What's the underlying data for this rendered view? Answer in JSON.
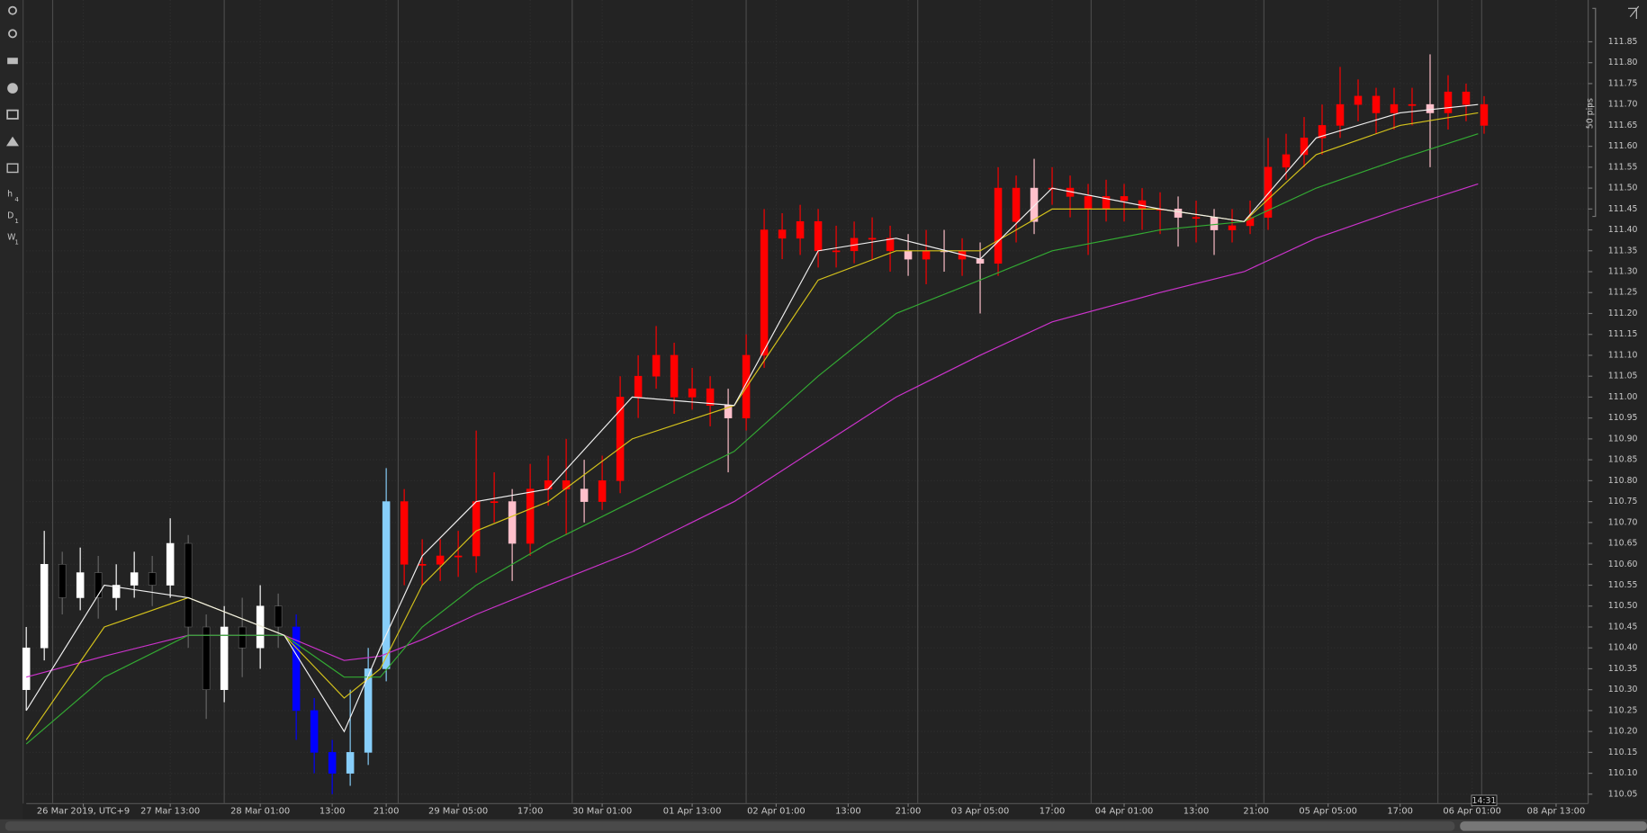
{
  "chart_data": {
    "type": "candlestick",
    "x": [
      0,
      3,
      6,
      9,
      12,
      15,
      18,
      21,
      24,
      27,
      30,
      33,
      36,
      39,
      42,
      45,
      48,
      51,
      54,
      57,
      60,
      63,
      66,
      69,
      72,
      75,
      78,
      81,
      84,
      87,
      90,
      93,
      96,
      99,
      102,
      105,
      108,
      111,
      114,
      117,
      120,
      123,
      126,
      129,
      132,
      135,
      138,
      141,
      144,
      147,
      150,
      153,
      156,
      159,
      162,
      165,
      168,
      171,
      174,
      177,
      180,
      183,
      186,
      189,
      192,
      195,
      198,
      201,
      204,
      207,
      210,
      213,
      216,
      219,
      222,
      225,
      228,
      231,
      234,
      237,
      240,
      243
    ],
    "open": [
      110.3,
      110.4,
      110.6,
      110.52,
      110.58,
      110.52,
      110.55,
      110.58,
      110.55,
      110.65,
      110.45,
      110.3,
      110.45,
      110.4,
      110.5,
      110.45,
      110.25,
      110.15,
      110.1,
      110.15,
      110.35,
      110.75,
      110.6,
      110.6,
      110.62,
      110.62,
      110.75,
      110.75,
      110.65,
      110.78,
      110.8,
      110.78,
      110.75,
      110.8,
      111.0,
      111.05,
      111.1,
      111.0,
      111.02,
      110.98,
      110.95,
      111.1,
      111.4,
      111.38,
      111.42,
      111.35,
      111.35,
      111.38,
      111.38,
      111.35,
      111.33,
      111.35,
      111.35,
      111.33,
      111.32,
      111.5,
      111.42,
      111.5,
      111.5,
      111.48,
      111.45,
      111.48,
      111.47,
      111.45,
      111.45,
      111.43,
      111.43,
      111.4,
      111.41,
      111.43,
      111.55,
      111.58,
      111.62,
      111.65,
      111.7,
      111.72,
      111.68,
      111.7,
      111.7,
      111.68,
      111.73,
      111.7
    ],
    "high": [
      110.45,
      110.68,
      110.63,
      110.64,
      110.62,
      110.6,
      110.63,
      110.62,
      110.71,
      110.67,
      110.48,
      110.5,
      110.52,
      110.55,
      110.53,
      110.48,
      110.28,
      110.18,
      110.3,
      110.4,
      110.83,
      110.78,
      110.66,
      110.66,
      110.68,
      110.92,
      110.82,
      110.78,
      110.84,
      110.86,
      110.9,
      110.85,
      110.86,
      111.05,
      111.1,
      111.17,
      111.13,
      111.07,
      111.05,
      111.02,
      111.15,
      111.45,
      111.44,
      111.46,
      111.45,
      111.41,
      111.42,
      111.43,
      111.41,
      111.39,
      111.4,
      111.4,
      111.38,
      111.37,
      111.55,
      111.53,
      111.57,
      111.55,
      111.53,
      111.51,
      111.52,
      111.51,
      111.5,
      111.49,
      111.48,
      111.47,
      111.45,
      111.45,
      111.47,
      111.62,
      111.63,
      111.67,
      111.7,
      111.79,
      111.76,
      111.74,
      111.74,
      111.74,
      111.82,
      111.77,
      111.75,
      111.72
    ],
    "low": [
      110.25,
      110.37,
      110.48,
      110.49,
      110.47,
      110.49,
      110.52,
      110.5,
      110.52,
      110.4,
      110.23,
      110.27,
      110.33,
      110.35,
      110.4,
      110.18,
      110.1,
      110.05,
      110.07,
      110.12,
      110.32,
      110.55,
      110.55,
      110.56,
      110.57,
      110.58,
      110.7,
      110.56,
      110.62,
      110.74,
      110.67,
      110.7,
      110.73,
      110.77,
      110.95,
      111.02,
      110.96,
      110.97,
      110.93,
      110.82,
      110.92,
      111.07,
      111.33,
      111.34,
      111.31,
      111.31,
      111.32,
      111.33,
      111.3,
      111.29,
      111.27,
      111.3,
      111.29,
      111.2,
      111.29,
      111.37,
      111.39,
      111.46,
      111.43,
      111.34,
      111.42,
      111.42,
      111.4,
      111.39,
      111.36,
      111.37,
      111.34,
      111.37,
      111.39,
      111.4,
      111.52,
      111.55,
      111.58,
      111.62,
      111.66,
      111.63,
      111.64,
      111.65,
      111.55,
      111.64,
      111.66,
      111.63
    ],
    "close": [
      110.4,
      110.6,
      110.52,
      110.58,
      110.52,
      110.55,
      110.58,
      110.55,
      110.65,
      110.45,
      110.3,
      110.45,
      110.4,
      110.5,
      110.45,
      110.25,
      110.15,
      110.1,
      110.15,
      110.35,
      110.75,
      110.6,
      110.6,
      110.62,
      110.62,
      110.75,
      110.75,
      110.65,
      110.78,
      110.8,
      110.78,
      110.75,
      110.8,
      111.0,
      111.05,
      111.1,
      111.0,
      111.02,
      110.98,
      110.95,
      111.1,
      111.4,
      111.38,
      111.42,
      111.35,
      111.35,
      111.38,
      111.38,
      111.35,
      111.33,
      111.35,
      111.35,
      111.33,
      111.32,
      111.5,
      111.42,
      111.5,
      111.5,
      111.48,
      111.45,
      111.48,
      111.47,
      111.45,
      111.45,
      111.43,
      111.43,
      111.4,
      111.41,
      111.43,
      111.55,
      111.58,
      111.62,
      111.65,
      111.7,
      111.72,
      111.68,
      111.7,
      111.7,
      111.68,
      111.73,
      111.7,
      111.65
    ],
    "colors": [
      "#ffffff",
      "#ffffff",
      "#000000",
      "#ffffff",
      "#000000",
      "#ffffff",
      "#ffffff",
      "#000000",
      "#ffffff",
      "#000000",
      "#000000",
      "#ffffff",
      "#000000",
      "#ffffff",
      "#000000",
      "#0000ff",
      "#0000ff",
      "#0000ff",
      "#87cefa",
      "#87cefa",
      "#87cefa",
      "#ff0000",
      "#ff0000",
      "#ff0000",
      "#ff0000",
      "#ff0000",
      "#ff0000",
      "#ffc0cb",
      "#ff0000",
      "#ff0000",
      "#ff0000",
      "#ffc0cb",
      "#ff0000",
      "#ff0000",
      "#ff0000",
      "#ff0000",
      "#ff0000",
      "#ff0000",
      "#ff0000",
      "#ffc0cb",
      "#ff0000",
      "#ff0000",
      "#ff0000",
      "#ff0000",
      "#ff0000",
      "#ff0000",
      "#ff0000",
      "#ff0000",
      "#ff0000",
      "#ffc0cb",
      "#ff0000",
      "#ffc0cb",
      "#ff0000",
      "#ffc0cb",
      "#ff0000",
      "#ff0000",
      "#ffc0cb",
      "#ff0000",
      "#ff0000",
      "#ff0000",
      "#ff0000",
      "#ff0000",
      "#ff0000",
      "#ff0000",
      "#ffc0cb",
      "#ff0000",
      "#ffc0cb",
      "#ff0000",
      "#ff0000",
      "#ff0000",
      "#ff0000",
      "#ff0000",
      "#ff0000",
      "#ff0000",
      "#ff0000",
      "#ff0000",
      "#ff0000",
      "#ff0000",
      "#ffc0cb",
      "#ff0000",
      "#ff0000",
      "#ff0000"
    ],
    "ma_x": [
      0,
      13,
      27,
      43,
      53,
      59,
      66,
      75,
      87,
      101,
      118,
      132,
      145,
      159,
      171,
      189,
      203,
      215,
      229,
      242
    ],
    "moving_averages": [
      {
        "color": "#cc33cc",
        "values": [
          110.33,
          110.38,
          110.43,
          110.43,
          110.37,
          110.38,
          110.42,
          110.48,
          110.55,
          110.63,
          110.75,
          110.88,
          111.0,
          111.1,
          111.18,
          111.25,
          111.3,
          111.38,
          111.45,
          111.51
        ]
      },
      {
        "color": "#33aa33",
        "values": [
          110.17,
          110.33,
          110.43,
          110.43,
          110.33,
          110.33,
          110.45,
          110.55,
          110.65,
          110.75,
          110.87,
          111.05,
          111.2,
          111.28,
          111.35,
          111.4,
          111.42,
          111.5,
          111.57,
          111.63
        ]
      },
      {
        "color": "#d4c21c",
        "values": [
          110.18,
          110.45,
          110.52,
          110.43,
          110.28,
          110.35,
          110.55,
          110.68,
          110.75,
          110.9,
          110.98,
          111.28,
          111.35,
          111.35,
          111.45,
          111.45,
          111.42,
          111.58,
          111.65,
          111.68
        ]
      },
      {
        "color": "#f0f0f0",
        "values": [
          110.25,
          110.55,
          110.52,
          110.43,
          110.2,
          110.4,
          110.62,
          110.75,
          110.78,
          111.0,
          110.98,
          111.35,
          111.38,
          111.33,
          111.5,
          111.45,
          111.42,
          111.62,
          111.68,
          111.7
        ]
      }
    ],
    "day_separators": [
      4.4,
      33,
      62,
      91,
      120,
      148.6,
      177.5,
      206.3,
      235.3,
      242.6
    ],
    "xlim": [
      0,
      260
    ],
    "xticks": [
      {
        "value": 9.5,
        "label": "26 Mar 2019, UTC+9"
      },
      {
        "value": 24,
        "label": "27 Mar 13:00"
      },
      {
        "value": 39,
        "label": "28 Mar 01:00"
      },
      {
        "value": 51,
        "label": "13:00"
      },
      {
        "value": 60,
        "label": "21:00"
      },
      {
        "value": 72,
        "label": "29 Mar 05:00"
      },
      {
        "value": 84,
        "label": "17:00"
      },
      {
        "value": 96,
        "label": "30 Mar 01:00"
      },
      {
        "value": 111,
        "label": "01 Apr 13:00"
      },
      {
        "value": 125,
        "label": "02 Apr 01:00"
      },
      {
        "value": 137,
        "label": "13:00"
      },
      {
        "value": 147,
        "label": "21:00"
      },
      {
        "value": 159,
        "label": "03 Apr 05:00"
      },
      {
        "value": 171,
        "label": "17:00"
      },
      {
        "value": 183,
        "label": "04 Apr 01:00"
      },
      {
        "value": 195,
        "label": "13:00"
      },
      {
        "value": 205,
        "label": "21:00"
      },
      {
        "value": 217,
        "label": "05 Apr 05:00"
      },
      {
        "value": 229,
        "label": "17:00"
      },
      {
        "value": 241,
        "label": "06 Apr 01:00"
      },
      {
        "value": 255,
        "label": "08 Apr 13:00"
      }
    ],
    "ylim": [
      110.03,
      111.95
    ],
    "yticks": [
      {
        "value": 110.05,
        "label": "110.05"
      },
      {
        "value": 110.1,
        "label": "110.10"
      },
      {
        "value": 110.15,
        "label": "110.15"
      },
      {
        "value": 110.2,
        "label": "110.20"
      },
      {
        "value": 110.25,
        "label": "110.25"
      },
      {
        "value": 110.3,
        "label": "110.30"
      },
      {
        "value": 110.35,
        "label": "110.35"
      },
      {
        "value": 110.4,
        "label": "110.40"
      },
      {
        "value": 110.45,
        "label": "110.45"
      },
      {
        "value": 110.5,
        "label": "110.50"
      },
      {
        "value": 110.55,
        "label": "110.55"
      },
      {
        "value": 110.6,
        "label": "110.60"
      },
      {
        "value": 110.65,
        "label": "110.65"
      },
      {
        "value": 110.7,
        "label": "110.70"
      },
      {
        "value": 110.75,
        "label": "110.75"
      },
      {
        "value": 110.8,
        "label": "110.80"
      },
      {
        "value": 110.85,
        "label": "110.85"
      },
      {
        "value": 110.9,
        "label": "110.90"
      },
      {
        "value": 110.95,
        "label": "110.95"
      },
      {
        "value": 111.0,
        "label": "111.00"
      },
      {
        "value": 111.05,
        "label": "111.05"
      },
      {
        "value": 111.1,
        "label": "111.10"
      },
      {
        "value": 111.15,
        "label": "111.15"
      },
      {
        "value": 111.2,
        "label": "111.20"
      },
      {
        "value": 111.25,
        "label": "111.25"
      },
      {
        "value": 111.3,
        "label": "111.30"
      },
      {
        "value": 111.35,
        "label": "111.35"
      },
      {
        "value": 111.4,
        "label": "111.40"
      },
      {
        "value": 111.45,
        "label": "111.45"
      },
      {
        "value": 111.5,
        "label": "111.50"
      },
      {
        "value": 111.55,
        "label": "111.55"
      },
      {
        "value": 111.6,
        "label": "111.60"
      },
      {
        "value": 111.65,
        "label": "111.65"
      },
      {
        "value": 111.7,
        "label": "111.70"
      },
      {
        "value": 111.75,
        "label": "111.75"
      },
      {
        "value": 111.8,
        "label": "111.80"
      },
      {
        "value": 111.85,
        "label": "111.85"
      }
    ],
    "grid": true,
    "scale_label": "50 pips",
    "time_label": "14:31"
  },
  "toolbar": {
    "timeframes": [
      {
        "letter": "h",
        "sub": "4"
      },
      {
        "letter": "D",
        "sub": "1"
      },
      {
        "letter": "W",
        "sub": "1"
      }
    ]
  }
}
